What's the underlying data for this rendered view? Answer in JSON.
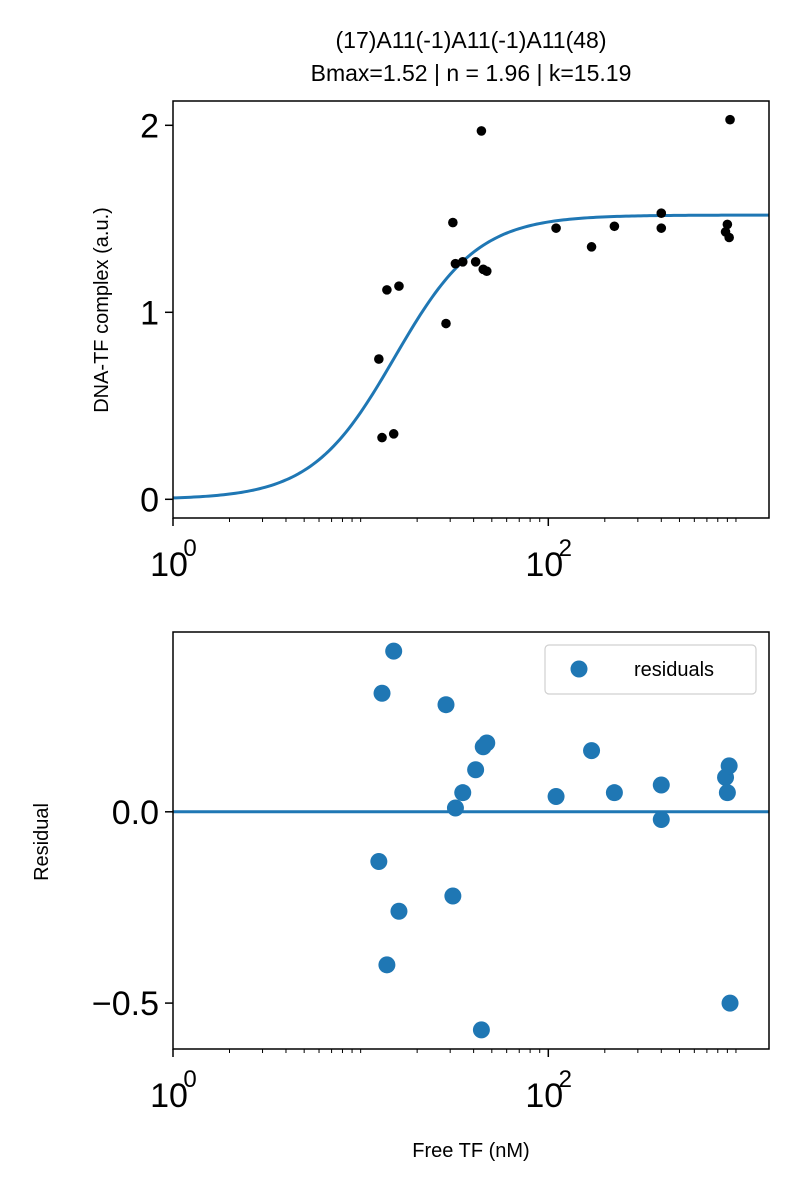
{
  "colors": {
    "fit_line": "#1f77b4",
    "residual_points": "#1f77b4",
    "data_points": "#000000",
    "axes": "#000000",
    "background": "#ffffff"
  },
  "chart_data": [
    {
      "type": "scatter",
      "title_line1": "(17)A11(-1)A11(-1)A11(48)",
      "title_line2": "Bmax=1.52 | n = 1.96 | k=15.19",
      "xlabel": "",
      "ylabel": "DNA-TF complex (a.u.)",
      "xscale": "log",
      "xlim": [
        1,
        1500
      ],
      "ylim": [
        -0.1,
        2.13
      ],
      "x_ticks": [
        {
          "value": 1,
          "base": "10",
          "exp": "0"
        },
        {
          "value": 100,
          "base": "10",
          "exp": "2"
        }
      ],
      "y_ticks": [
        {
          "value": 0,
          "label": "0"
        },
        {
          "value": 1,
          "label": "1"
        },
        {
          "value": 2,
          "label": "2"
        }
      ],
      "fit": {
        "Bmax": 1.52,
        "n": 1.96,
        "k": 15.19
      },
      "series": [
        {
          "x": [
            12.5,
            13.0,
            13.8,
            16.0,
            15.0,
            28.5,
            31.0,
            32.0,
            35.0,
            41.0,
            44.0,
            45.0,
            47.0,
            110,
            170,
            225,
            400,
            400,
            880,
            900,
            920,
            930
          ],
          "y": [
            0.75,
            0.33,
            1.12,
            1.14,
            0.35,
            0.94,
            1.48,
            1.26,
            1.27,
            1.27,
            1.97,
            1.23,
            1.22,
            1.45,
            1.35,
            1.46,
            1.53,
            1.45,
            1.43,
            1.47,
            1.4,
            2.03
          ]
        }
      ]
    },
    {
      "type": "scatter",
      "xlabel": "Free TF (nM)",
      "ylabel": "Residual",
      "xscale": "log",
      "xlim": [
        1,
        1500
      ],
      "ylim": [
        -0.62,
        0.47
      ],
      "x_ticks": [
        {
          "value": 1,
          "base": "10",
          "exp": "0"
        },
        {
          "value": 100,
          "base": "10",
          "exp": "2"
        }
      ],
      "y_ticks": [
        {
          "value": -0.5,
          "label": "−0.5"
        },
        {
          "value": 0.0,
          "label": "0.0"
        }
      ],
      "reference_line_y": 0,
      "legend": {
        "position": "top-right",
        "entries": [
          "residuals"
        ]
      },
      "series": [
        {
          "name": "residuals",
          "x": [
            12.5,
            13.0,
            13.8,
            16.0,
            15.0,
            28.5,
            31.0,
            32.0,
            35.0,
            41.0,
            44.0,
            45.0,
            47.0,
            110,
            170,
            225,
            400,
            400,
            880,
            900,
            920,
            930
          ],
          "y": [
            -0.13,
            0.31,
            -0.4,
            -0.26,
            0.42,
            0.28,
            -0.22,
            0.01,
            0.05,
            0.11,
            -0.57,
            0.17,
            0.18,
            0.04,
            0.16,
            0.05,
            0.07,
            -0.02,
            0.09,
            0.05,
            0.12,
            -0.5
          ]
        }
      ]
    }
  ]
}
